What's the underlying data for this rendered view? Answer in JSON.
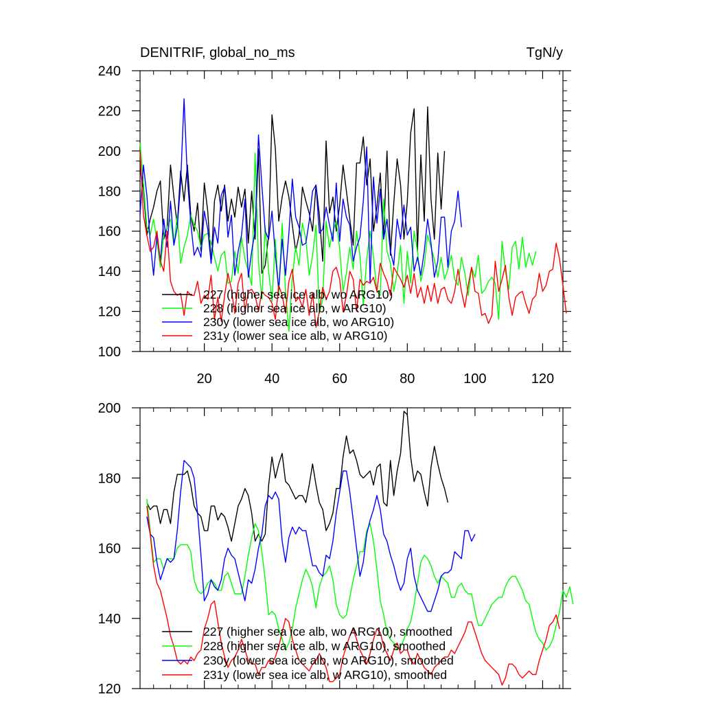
{
  "chart_data": [
    {
      "type": "line",
      "title": "DENITRIF, global_no_ms",
      "units": "TgN/y",
      "xlabel": "",
      "ylabel": "",
      "xlim": [
        1,
        126
      ],
      "ylim": [
        100,
        240
      ],
      "xticks": [
        20,
        40,
        60,
        80,
        100,
        120
      ],
      "yticks": [
        100,
        120,
        140,
        160,
        180,
        200,
        220,
        240
      ],
      "legend_position": "bottom-left",
      "series": [
        {
          "name": "227 (higher sea ice alb, wo ARG10)",
          "color": "#000000",
          "x_start": 1,
          "values": [
            191,
            181,
            158,
            166,
            172,
            180,
            185,
            156,
            162,
            193,
            177,
            163,
            190,
            175,
            193,
            168,
            160,
            174,
            150,
            184,
            170,
            144,
            175,
            183,
            170,
            183,
            165,
            176,
            167,
            182,
            172,
            181,
            154,
            180,
            156,
            201,
            139,
            143,
            158,
            218,
            201,
            165,
            177,
            185,
            177,
            163,
            150,
            158,
            182,
            175,
            169,
            160,
            183,
            168,
            145,
            205,
            169,
            177,
            160,
            173,
            193,
            180,
            166,
            153,
            194,
            194,
            207,
            183,
            196,
            160,
            172,
            189,
            157,
            200,
            148,
            174,
            196,
            183,
            156,
            175,
            209,
            221,
            150,
            198,
            165,
            222,
            176,
            156,
            199,
            171,
            200
          ]
        },
        {
          "name": "228 (higher sea ice alb, w ARG10)",
          "color": "#00ff00",
          "x_start": 1,
          "values": [
            204,
            184,
            162,
            158,
            166,
            155,
            142,
            158,
            162,
            166,
            153,
            168,
            144,
            152,
            158,
            168,
            163,
            160,
            152,
            158,
            159,
            154,
            147,
            140,
            148,
            150,
            134,
            135,
            150,
            139,
            157,
            146,
            140,
            133,
            199,
            145,
            126,
            162,
            140,
            125,
            156,
            128,
            164,
            130,
            110,
            137,
            152,
            143,
            164,
            156,
            138,
            148,
            163,
            119,
            126,
            165,
            152,
            160,
            165,
            151,
            130,
            139,
            152,
            141,
            160,
            148,
            123,
            146,
            160,
            147,
            130,
            128,
            176,
            150,
            144,
            130,
            139,
            153,
            124,
            150,
            134,
            160,
            150,
            135,
            143,
            158,
            152,
            146,
            137,
            147,
            136,
            141,
            148,
            136,
            133,
            147,
            139,
            128,
            142,
            137,
            148,
            129,
            131,
            135,
            137,
            134,
            116,
            155,
            140,
            131,
            152,
            155,
            141,
            157,
            142,
            149,
            143,
            150
          ]
        },
        {
          "name": "230y (lower sea ice alb, wo ARG10)",
          "color": "#0000ff",
          "x_start": 1,
          "values": [
            168,
            193,
            178,
            155,
            138,
            158,
            145,
            166,
            152,
            175,
            153,
            162,
            184,
            226,
            186,
            164,
            148,
            152,
            147,
            170,
            161,
            144,
            162,
            154,
            178,
            182,
            157,
            168,
            138,
            150,
            158,
            176,
            137,
            150,
            160,
            208,
            183,
            160,
            156,
            170,
            148,
            131,
            156,
            138,
            159,
            186,
            167,
            162,
            153,
            154,
            165,
            180,
            183,
            159,
            161,
            172,
            163,
            155,
            184,
            155,
            176,
            167,
            163,
            145,
            152,
            157,
            175,
            202,
            134,
            187,
            164,
            181,
            156,
            166,
            150,
            143,
            166,
            156,
            173,
            158,
            162,
            140,
            147,
            138,
            150,
            166,
            154,
            137,
            145,
            167,
            167,
            142,
            160,
            165,
            180,
            162
          ]
        },
        {
          "name": "231y (lower sea ice alb, w ARG10)",
          "color": "#ff0000",
          "x_start": 1,
          "values": [
            200,
            168,
            158,
            150,
            152,
            160,
            145,
            140,
            160,
            135,
            130,
            128,
            129,
            118,
            130,
            128,
            128,
            135,
            124,
            128,
            126,
            138,
            116,
            127,
            115,
            128,
            139,
            131,
            119,
            134,
            139,
            120,
            130,
            131,
            128,
            120,
            130,
            128,
            127,
            124,
            116,
            133,
            128,
            119,
            135,
            141,
            125,
            127,
            122,
            131,
            118,
            129,
            112,
            120,
            132,
            126,
            130,
            140,
            142,
            136,
            120,
            128,
            140,
            136,
            120,
            136,
            133,
            135,
            134,
            137,
            130,
            144,
            139,
            135,
            128,
            142,
            139,
            136,
            132,
            138,
            129,
            139,
            127,
            132,
            124,
            133,
            125,
            134,
            124,
            131,
            132,
            126,
            124,
            130,
            141,
            130,
            122,
            133,
            142,
            130,
            129,
            118,
            119,
            114,
            118,
            145,
            130,
            136,
            143,
            127,
            118,
            127,
            129,
            130,
            124,
            119,
            126,
            128,
            139,
            130,
            133,
            140,
            141,
            154,
            146,
            133,
            119
          ]
        }
      ]
    },
    {
      "type": "line",
      "title": "",
      "xlabel": "",
      "ylabel": "",
      "xlim": [
        1,
        126
      ],
      "ylim": [
        120,
        200
      ],
      "xticks": [
        20,
        40,
        60,
        80,
        100,
        120
      ],
      "yticks": [
        120,
        140,
        160,
        180,
        200
      ],
      "legend_position": "bottom-left",
      "series": [
        {
          "name": "227 (higher sea ice alb, wo ARG10), smoothed",
          "color": "#000000",
          "x_start": 3,
          "values": [
            173,
            171,
            172,
            172,
            167,
            171,
            171,
            167,
            176,
            181,
            181,
            181,
            182,
            178,
            172,
            170,
            169,
            165,
            165,
            172,
            172,
            168,
            170,
            169,
            166,
            162,
            167,
            172,
            174,
            177,
            175,
            170,
            162,
            164,
            162,
            164,
            178,
            186,
            180,
            184,
            187,
            179,
            178,
            176,
            174,
            175,
            175,
            173,
            178,
            184,
            178,
            173,
            171,
            165,
            167,
            170,
            177,
            177,
            186,
            192,
            187,
            188,
            185,
            181,
            180,
            181,
            182,
            178,
            183,
            184,
            173,
            172,
            185,
            175,
            182,
            187,
            199,
            198,
            186,
            179,
            182,
            181,
            176,
            172,
            183,
            189,
            184,
            180,
            177,
            173
          ]
        },
        {
          "name": "228 (higher sea ice alb, w ARG10), smoothed",
          "color": "#00ff00",
          "x_start": 3,
          "values": [
            174,
            165,
            156,
            157,
            157,
            154,
            157,
            157,
            157,
            160,
            161,
            161,
            161,
            159,
            151,
            148,
            147,
            148,
            150,
            151,
            150,
            148,
            148,
            152,
            153,
            150,
            147,
            147,
            147,
            152,
            158,
            163,
            167,
            165,
            159,
            151,
            141,
            142,
            141,
            137,
            134,
            131,
            133,
            137,
            143,
            147,
            151,
            154,
            152,
            149,
            143,
            149,
            152,
            153,
            155,
            151,
            144,
            141,
            140,
            141,
            146,
            151,
            155,
            159,
            159,
            165,
            167,
            162,
            154,
            145,
            141,
            136,
            134,
            133,
            131,
            132,
            134,
            137,
            139,
            144,
            150,
            156,
            158,
            157,
            155,
            152,
            150,
            152,
            151,
            150,
            146,
            146,
            149,
            150,
            148,
            147,
            147,
            142,
            138,
            138,
            140,
            142,
            144,
            145,
            146,
            146,
            149,
            151,
            152,
            152,
            150,
            148,
            145,
            144,
            140,
            136,
            134,
            133,
            131,
            132,
            134,
            138,
            142,
            148,
            146,
            149,
            144
          ]
        },
        {
          "name": "230y (lower sea ice alb, wo ARG10), smoothed",
          "color": "#0000ff",
          "x_start": 3,
          "values": [
            169,
            164,
            163,
            156,
            151,
            154,
            157,
            156,
            157,
            165,
            176,
            185,
            184,
            183,
            180,
            170,
            158,
            145,
            147,
            151,
            149,
            148,
            151,
            157,
            160,
            158,
            157,
            153,
            149,
            145,
            151,
            150,
            154,
            160,
            164,
            172,
            175,
            174,
            176,
            174,
            162,
            156,
            163,
            166,
            164,
            166,
            165,
            165,
            160,
            155,
            155,
            153,
            152,
            158,
            157,
            162,
            170,
            176,
            182,
            182,
            176,
            168,
            160,
            152,
            156,
            164,
            168,
            171,
            175,
            171,
            164,
            162,
            158,
            155,
            151,
            148,
            150,
            157,
            160,
            152,
            148,
            146,
            144,
            142,
            142,
            145,
            148,
            152,
            153,
            153,
            154,
            159,
            158,
            157,
            165,
            165,
            162,
            164
          ]
        },
        {
          "name": "231y (lower sea ice alb, w ARG10), smoothed",
          "color": "#ff0000",
          "x_start": 3,
          "values": [
            172,
            164,
            155,
            150,
            148,
            144,
            140,
            135,
            132,
            128,
            127,
            128,
            127,
            129,
            128,
            130,
            131,
            137,
            140,
            144,
            145,
            139,
            133,
            129,
            126,
            128,
            129,
            131,
            134,
            131,
            128,
            127,
            127,
            124,
            126,
            126,
            128,
            127,
            129,
            132,
            136,
            140,
            139,
            134,
            131,
            128,
            127,
            126,
            125,
            127,
            128,
            130,
            128,
            126,
            122,
            122,
            123,
            124,
            129,
            132,
            135,
            137,
            134,
            131,
            129,
            127,
            130,
            134,
            137,
            136,
            132,
            130,
            128,
            131,
            133,
            130,
            131,
            131,
            128,
            127,
            130,
            128,
            126,
            125,
            124,
            126,
            127,
            128,
            129,
            129,
            131,
            130,
            132,
            134,
            136,
            139,
            139,
            136,
            133,
            130,
            128,
            127,
            126,
            125,
            124,
            121,
            123,
            127,
            127,
            126,
            124,
            123,
            124,
            125,
            124,
            124,
            128,
            131,
            134,
            138,
            139,
            141,
            137
          ]
        }
      ]
    }
  ]
}
